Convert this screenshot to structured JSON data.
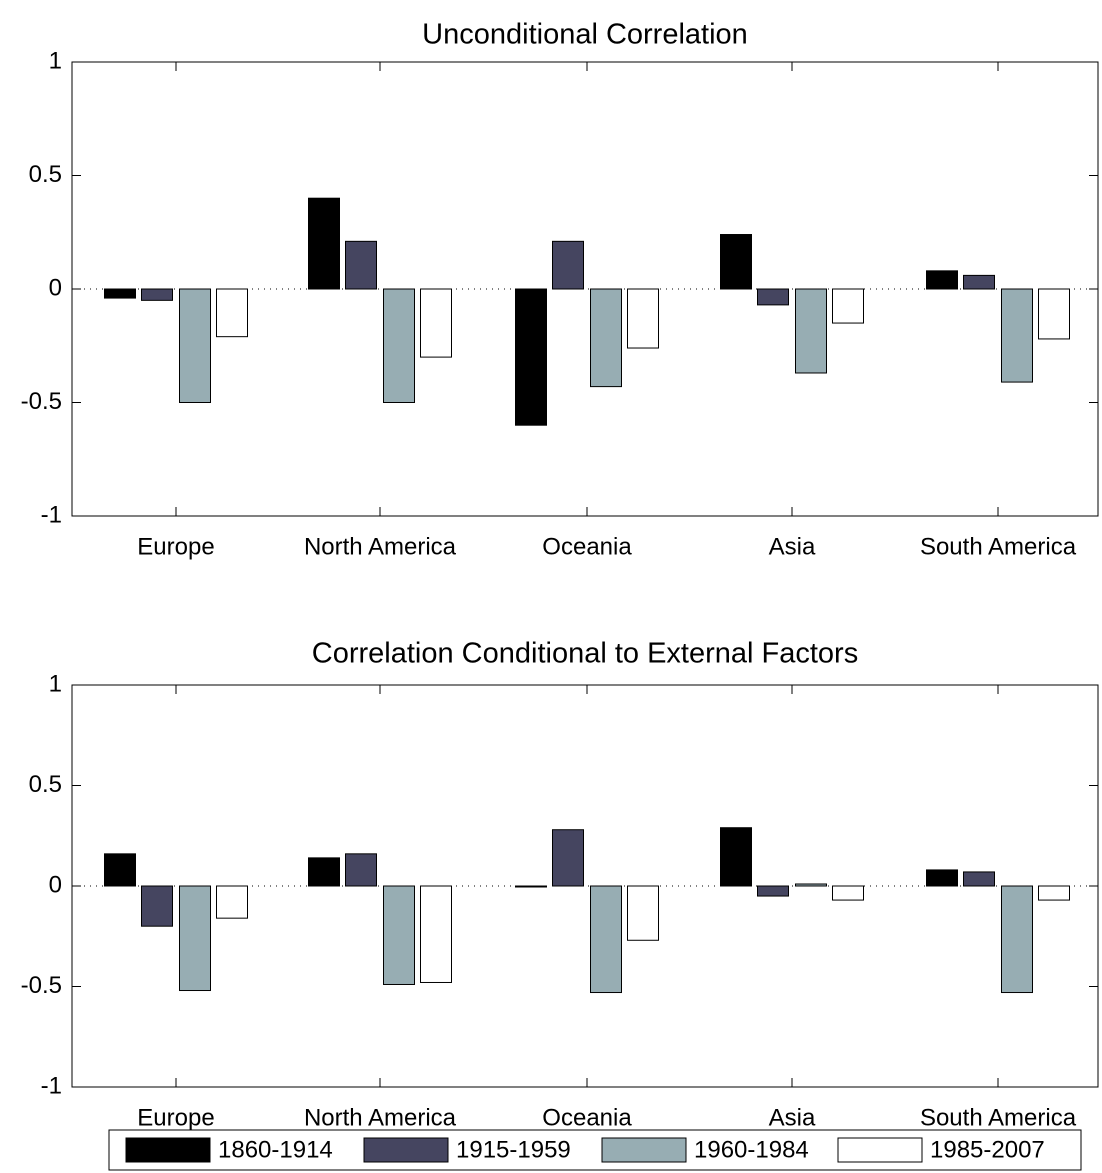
{
  "chart_data": [
    {
      "type": "bar",
      "title": "Unconditional Correlation",
      "categories": [
        "Europe",
        "North America",
        "Oceania",
        "Asia",
        "South America"
      ],
      "ylim": [
        -1,
        1
      ],
      "yticks": [
        1,
        0.5,
        0,
        -0.5,
        -1
      ],
      "ytick_labels": [
        "1",
        "0.5",
        "0",
        "-0.5",
        "-1"
      ],
      "zero_line": "dotted",
      "grid": false,
      "series": [
        {
          "name": "1860-1914",
          "color": "#000000",
          "values": [
            -0.04,
            0.4,
            -0.6,
            0.24,
            0.08
          ]
        },
        {
          "name": "1915-1959",
          "color": "#454560",
          "values": [
            -0.05,
            0.21,
            0.21,
            -0.07,
            0.06
          ]
        },
        {
          "name": "1960-1984",
          "color": "#97adb3",
          "values": [
            -0.5,
            -0.5,
            -0.43,
            -0.37,
            -0.41
          ]
        },
        {
          "name": "1985-2007",
          "color": "#ffffff",
          "values": [
            -0.21,
            -0.3,
            -0.26,
            -0.15,
            -0.22
          ]
        }
      ]
    },
    {
      "type": "bar",
      "title": "Correlation Conditional to External Factors",
      "categories": [
        "Europe",
        "North America",
        "Oceania",
        "Asia",
        "South America"
      ],
      "ylim": [
        -1,
        1
      ],
      "yticks": [
        1,
        0.5,
        0,
        -0.5,
        -1
      ],
      "ytick_labels": [
        "1",
        "0.5",
        "0",
        "-0.5",
        "-1"
      ],
      "zero_line": "dotted",
      "grid": false,
      "series": [
        {
          "name": "1860-1914",
          "color": "#000000",
          "values": [
            0.16,
            0.14,
            0.0,
            0.29,
            0.08
          ]
        },
        {
          "name": "1915-1959",
          "color": "#454560",
          "values": [
            -0.2,
            0.16,
            0.28,
            -0.05,
            0.07
          ]
        },
        {
          "name": "1960-1984",
          "color": "#97adb3",
          "values": [
            -0.52,
            -0.49,
            -0.53,
            0.01,
            -0.53
          ]
        },
        {
          "name": "1985-2007",
          "color": "#ffffff",
          "values": [
            -0.16,
            -0.48,
            -0.27,
            -0.07,
            -0.07
          ]
        }
      ]
    }
  ],
  "legend": {
    "placement": "bottom",
    "entries": [
      {
        "label": "1860-1914",
        "color": "#000000"
      },
      {
        "label": "1915-1959",
        "color": "#454560"
      },
      {
        "label": "1960-1984",
        "color": "#97adb3"
      },
      {
        "label": "1985-2007",
        "color": "#ffffff"
      }
    ]
  }
}
